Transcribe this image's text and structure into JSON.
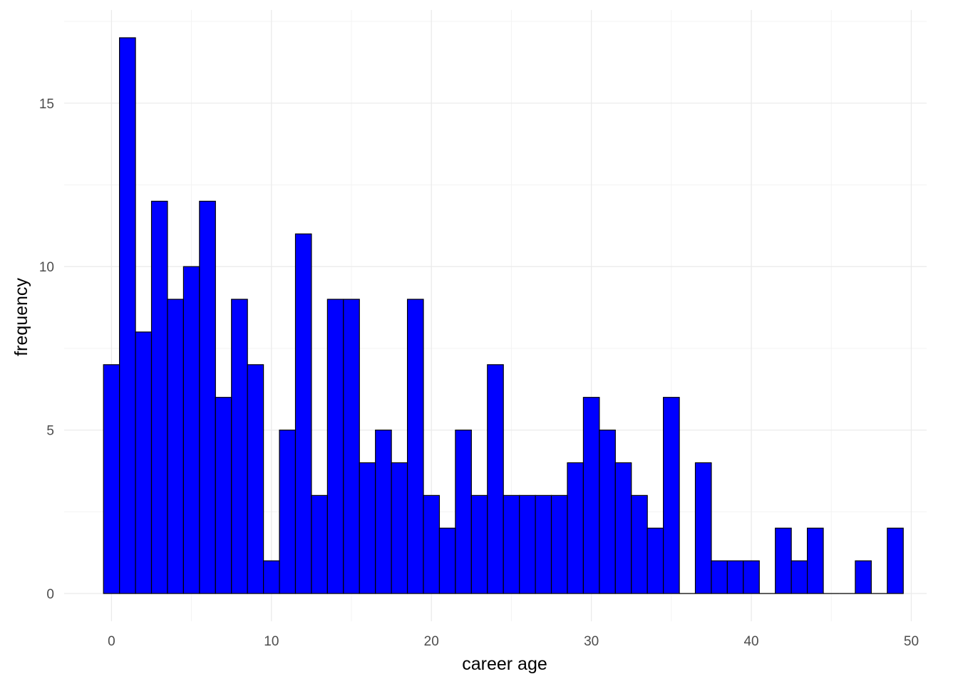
{
  "chart_data": {
    "type": "bar",
    "xlabel": "career age",
    "ylabel": "frequency",
    "title": "",
    "bin_width": 1,
    "x": [
      0,
      1,
      2,
      3,
      4,
      5,
      6,
      7,
      8,
      9,
      10,
      11,
      12,
      13,
      14,
      15,
      16,
      17,
      18,
      19,
      20,
      21,
      22,
      23,
      24,
      25,
      26,
      27,
      28,
      29,
      30,
      31,
      32,
      33,
      34,
      35,
      36,
      37,
      38,
      39,
      40,
      41,
      42,
      43,
      44,
      45,
      46,
      47,
      48,
      49
    ],
    "values": [
      7,
      17,
      8,
      12,
      9,
      10,
      12,
      6,
      9,
      7,
      1,
      5,
      11,
      3,
      9,
      9,
      4,
      5,
      4,
      9,
      3,
      2,
      5,
      3,
      7,
      3,
      3,
      3,
      3,
      4,
      6,
      5,
      4,
      3,
      2,
      6,
      0,
      4,
      1,
      1,
      1,
      0,
      2,
      1,
      2,
      0,
      0,
      1,
      0,
      2
    ],
    "xlim": [
      -2.96,
      50.96
    ],
    "ylim": [
      -0.85,
      17.85
    ],
    "x_ticks": [
      {
        "value": 0,
        "label": "0"
      },
      {
        "value": 10,
        "label": "10"
      },
      {
        "value": 20,
        "label": "20"
      },
      {
        "value": 30,
        "label": "30"
      },
      {
        "value": 40,
        "label": "40"
      },
      {
        "value": 50,
        "label": "50"
      }
    ],
    "y_ticks": [
      {
        "value": 0,
        "label": "0"
      },
      {
        "value": 5,
        "label": "5"
      },
      {
        "value": 10,
        "label": "10"
      },
      {
        "value": 15,
        "label": "15"
      }
    ],
    "bar_fill": "#0000ff",
    "bar_stroke": "#000000",
    "grid_major_color": "#ebebeb",
    "grid_minor_color": "#f3f3f3",
    "grid": true,
    "background": "#ffffff"
  }
}
